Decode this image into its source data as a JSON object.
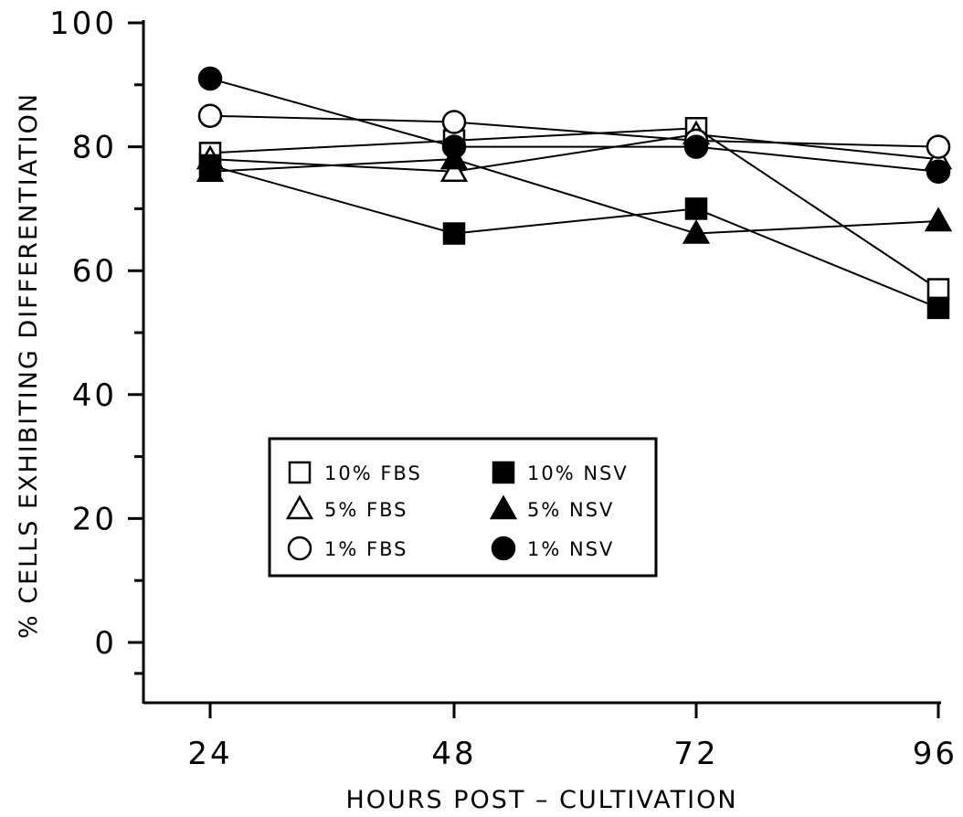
{
  "chart_data": {
    "type": "line",
    "title": "",
    "xlabel": "HOURS POST – CULTIVATION",
    "ylabel": "% CELLS EXHIBITING DIFFERENTIATION",
    "x": [
      24,
      48,
      72,
      96
    ],
    "x_tick_labels": [
      "24",
      "48",
      "72",
      "96"
    ],
    "y_ticks": [
      0,
      20,
      40,
      60,
      80,
      100
    ],
    "y_tick_labels": [
      "0",
      "20",
      "40",
      "60",
      "80",
      "100"
    ],
    "ylim": [
      -10,
      100
    ],
    "xlim": [
      24,
      96
    ],
    "grid": false,
    "legend_placement": "center-left",
    "series": [
      {
        "name": "10% FBS",
        "marker": "square",
        "filled": false,
        "values": [
          79,
          81,
          83,
          57
        ]
      },
      {
        "name": "5% FBS",
        "marker": "triangle",
        "filled": false,
        "values": [
          78,
          76,
          82,
          78
        ]
      },
      {
        "name": "1% FBS",
        "marker": "circle",
        "filled": false,
        "values": [
          85,
          84,
          81,
          80
        ]
      },
      {
        "name": "10% NSV",
        "marker": "square",
        "filled": true,
        "values": [
          77,
          66,
          70,
          54
        ]
      },
      {
        "name": "5% NSV",
        "marker": "triangle",
        "filled": true,
        "values": [
          76,
          78,
          66,
          68
        ]
      },
      {
        "name": "1% NSV",
        "marker": "circle",
        "filled": true,
        "values": [
          91,
          80,
          80,
          76
        ]
      }
    ],
    "colors": {
      "ink": "#000000",
      "background": "#ffffff"
    }
  }
}
